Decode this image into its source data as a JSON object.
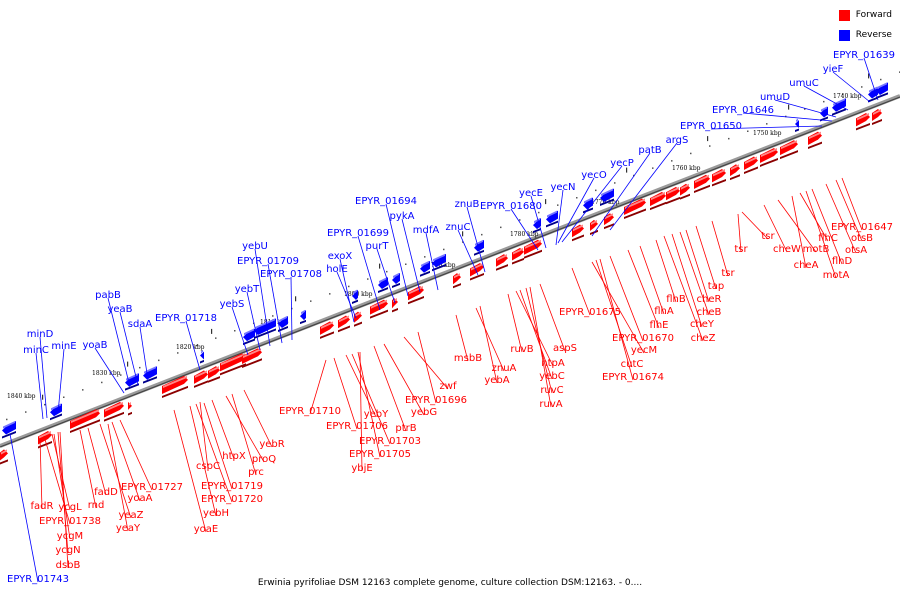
{
  "legend": {
    "forward_label": "Forward",
    "reverse_label": "Reverse",
    "forward_color": "#ff0000",
    "reverse_color": "#0000ff"
  },
  "caption": "Erwinia pyrifoliae DSM 12163 complete genome, culture collection DSM:12163. - 0....",
  "ticks": [
    "1840 kbp",
    "1830 kbp",
    "1820 kbp",
    "1810 kbp",
    "1800 kbp",
    "1790 kbp",
    "1780 kbp",
    "1770 kbp",
    "1760 kbp",
    "1750 kbp",
    "1740 kbp"
  ],
  "reverse_genes": [
    "EPYR_01743",
    "minC",
    "minD",
    "minE",
    "yoaB",
    "pabB",
    "yeaB",
    "sdaA",
    "EPYR_01718",
    "yebS",
    "yebT",
    "yebU",
    "EPYR_01709",
    "EPYR_01708",
    "exoX",
    "holE",
    "EPYR_01699",
    "purT",
    "EPYR_01694",
    "pykA",
    "mdfA",
    "znuC",
    "znuB",
    "EPYR_01680",
    "yecE",
    "yecN",
    "yecO",
    "yecP",
    "patB",
    "argS",
    "EPYR_01650",
    "EPYR_01646",
    "umuD",
    "umuC",
    "yieF",
    "EPYR_01639"
  ],
  "forward_genes": [
    "fadR",
    "EPYR_01738",
    "ycgL",
    "ycgM",
    "ycgN",
    "dsbB",
    "rnd",
    "fadD",
    "yeaZ",
    "yeaY",
    "yoaA",
    "EPYR_01727",
    "yoaE",
    "yebH",
    "EPYR_01720",
    "EPYR_01719",
    "cspC",
    "htpX",
    "proQ",
    "prc",
    "yebR",
    "EPYR_01710",
    "EPYR_01706",
    "yebY",
    "EPYR_01703",
    "EPYR_01705",
    "ybjE",
    "ptrB",
    "yebG",
    "zwf",
    "EPYR_01696",
    "msbB",
    "znuA",
    "yebA",
    "ruvB",
    "ntpA",
    "yebC",
    "ruvC",
    "ruvA",
    "aspS",
    "EPYR_01675",
    "yecM",
    "cutC",
    "EPYR_01674",
    "EPYR_01670",
    "flhE",
    "flhA",
    "flhB",
    "cheZ",
    "cheY",
    "cheB",
    "cheR",
    "tap",
    "tsr",
    "tsr",
    "tsr",
    "cheW",
    "motB",
    "cheA",
    "flhC",
    "motA",
    "flhD",
    "otsA",
    "otsB",
    "EPYR_01647"
  ]
}
